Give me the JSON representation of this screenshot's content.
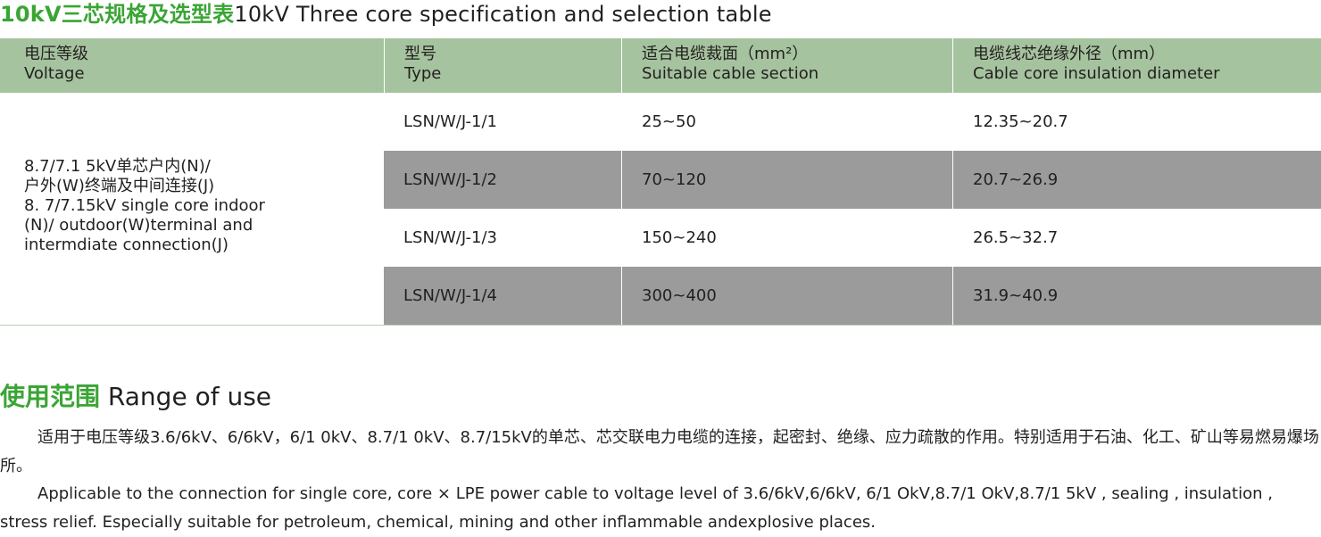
{
  "title": {
    "cn": "10kV三芯规格及选型表",
    "en": "10kV Three core specification and selection table"
  },
  "table": {
    "headers": [
      {
        "cn": "电压等级",
        "en": "Voltage"
      },
      {
        "cn": "型号",
        "en": "Type"
      },
      {
        "cn": "适合电缆裁面（mm²）",
        "en": "Suitable cable section"
      },
      {
        "cn": "电缆线芯绝缘外径（mm）",
        "en": "Cable core insulation diameter"
      }
    ],
    "voltage_lines": [
      "8.7/7.1 5kV单芯户内(N)/",
      "户外(W)终端及中间连接(J)",
      "8. 7/7.15kV single core  indoor",
      "(N)/ outdoor(W)terminal and",
      "intermdiate connection(J)"
    ],
    "rows": [
      {
        "type": "LSN/W/J-1/1",
        "section": "25~50",
        "diameter": "12.35~20.7"
      },
      {
        "type": "LSN/W/J-1/2",
        "section": "70~120",
        "diameter": "20.7~26.9"
      },
      {
        "type": "LSN/W/J-1/3",
        "section": "150~240",
        "diameter": "26.5~32.7"
      },
      {
        "type": "LSN/W/J-1/4",
        "section": "300~400",
        "diameter": "31.9~40.9"
      }
    ]
  },
  "range_of_use": {
    "title_cn": "使用范围",
    "title_en": "Range of use",
    "text_cn": "适用于电压等级3.6/6kV、6/6kV，6/1 0kV、8.7/1 0kV、8.7/15kV的单芯、芯交联电力电缆的连接，起密封、绝缘、应力疏散的作用。特别适用于石油、化工、矿山等易燃易爆场所。",
    "text_en": "Applicable to the connection for single core, core × LPE power cable to voltage level of 3.6/6kV,6/6kV, 6/1 OkV,8.7/1 OkV,8.7/1 5kV , sealing , insulation , stress relief. Especially suitable for petroleum, chemical, mining and other inflammable andexplosive places."
  },
  "colors": {
    "accent_green": "#3aa535",
    "header_bg": "#a5c39e",
    "row_gray": "#9b9b9b"
  }
}
